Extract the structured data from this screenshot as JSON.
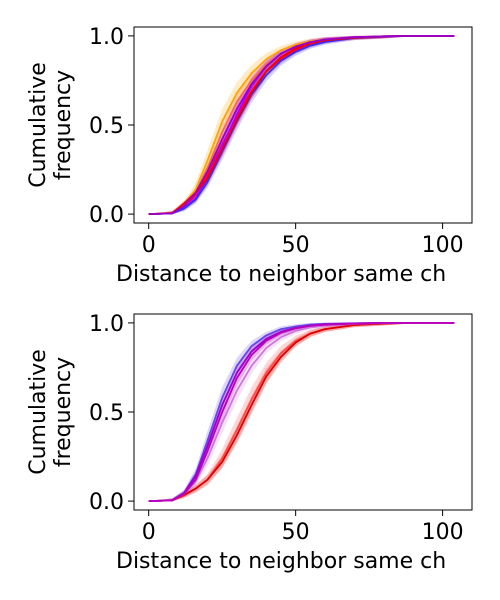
{
  "chart_data": [
    {
      "type": "line",
      "xlabel": "Distance to neighbor same ch",
      "ylabel": [
        "Cumulative",
        "frequency"
      ],
      "xlim": [
        -5,
        110
      ],
      "ylim": [
        -0.05,
        1.05
      ],
      "xticks": [
        0,
        50,
        100
      ],
      "xtick_labels": [
        "0",
        "50",
        "100"
      ],
      "yticks": [
        0,
        0.5,
        1
      ],
      "ytick_labels": [
        "0.0",
        "0.5",
        "1.0"
      ],
      "grid": false,
      "series": [
        {
          "color": "#ffa500",
          "band": 0.06,
          "x": [
            0,
            8,
            12,
            16,
            20,
            25,
            30,
            35,
            40,
            45,
            50,
            55,
            60,
            70,
            80,
            90,
            104
          ],
          "y": [
            0,
            0.005,
            0.05,
            0.14,
            0.3,
            0.52,
            0.68,
            0.79,
            0.87,
            0.92,
            0.95,
            0.97,
            0.98,
            0.993,
            0.998,
            1,
            1
          ]
        },
        {
          "color": "#ff6a3a",
          "band": 0.05,
          "x": [
            0,
            8,
            12,
            16,
            20,
            25,
            30,
            35,
            40,
            45,
            50,
            55,
            60,
            70,
            80,
            90,
            104
          ],
          "y": [
            0,
            0.005,
            0.045,
            0.12,
            0.26,
            0.46,
            0.63,
            0.75,
            0.84,
            0.9,
            0.94,
            0.965,
            0.978,
            0.992,
            0.998,
            1,
            1
          ]
        },
        {
          "color": "#ff0033",
          "band": 0.04,
          "x": [
            0,
            8,
            12,
            16,
            20,
            25,
            30,
            35,
            40,
            45,
            50,
            55,
            60,
            70,
            80,
            90,
            104
          ],
          "y": [
            0,
            0.005,
            0.04,
            0.11,
            0.22,
            0.39,
            0.55,
            0.69,
            0.8,
            0.87,
            0.92,
            0.95,
            0.97,
            0.988,
            0.996,
            1,
            1
          ]
        },
        {
          "color": "#b000ff",
          "band": 0.05,
          "x": [
            0,
            8,
            12,
            16,
            20,
            25,
            30,
            35,
            40,
            45,
            50,
            55,
            60,
            70,
            80,
            90,
            104
          ],
          "y": [
            0,
            0.004,
            0.035,
            0.09,
            0.2,
            0.38,
            0.56,
            0.72,
            0.83,
            0.9,
            0.94,
            0.965,
            0.98,
            0.993,
            0.998,
            1,
            1
          ]
        },
        {
          "color": "#3030ff",
          "band": 0.04,
          "x": [
            0,
            8,
            12,
            16,
            20,
            25,
            30,
            35,
            40,
            45,
            50,
            55,
            60,
            70,
            80,
            90,
            104
          ],
          "y": [
            0,
            0.004,
            0.03,
            0.08,
            0.18,
            0.35,
            0.52,
            0.67,
            0.78,
            0.86,
            0.91,
            0.945,
            0.965,
            0.988,
            0.996,
            1,
            1
          ]
        },
        {
          "color": "#ee0000",
          "band": 0.03,
          "x": [
            0,
            8,
            12,
            16,
            20,
            25,
            30,
            35,
            40,
            45,
            50,
            55,
            60,
            70,
            80,
            90,
            104
          ],
          "y": [
            0,
            0.005,
            0.06,
            0.12,
            0.2,
            0.36,
            0.53,
            0.68,
            0.8,
            0.88,
            0.93,
            0.96,
            0.975,
            0.99,
            0.997,
            1,
            1
          ]
        },
        {
          "color": "#9900cc",
          "band": 0.03,
          "x": [
            0,
            8,
            12,
            16,
            20,
            25,
            30,
            35,
            40,
            45,
            50,
            55,
            60,
            70,
            80,
            90,
            104
          ],
          "y": [
            0,
            0.004,
            0.045,
            0.12,
            0.24,
            0.42,
            0.59,
            0.73,
            0.83,
            0.9,
            0.94,
            0.965,
            0.98,
            0.993,
            0.998,
            1,
            1
          ]
        }
      ]
    },
    {
      "type": "line",
      "xlabel": "Distance to neighbor same ch",
      "ylabel": [
        "Cumulative",
        "frequency"
      ],
      "xlim": [
        -5,
        110
      ],
      "ylim": [
        -0.05,
        1.05
      ],
      "xticks": [
        0,
        50,
        100
      ],
      "xtick_labels": [
        "0",
        "50",
        "100"
      ],
      "yticks": [
        0,
        0.5,
        1
      ],
      "ytick_labels": [
        "0.0",
        "0.5",
        "1.0"
      ],
      "grid": false,
      "series": [
        {
          "color": "#ff4a4a",
          "band": 0.06,
          "x": [
            0,
            8,
            12,
            16,
            20,
            25,
            30,
            35,
            40,
            45,
            50,
            55,
            60,
            70,
            80,
            90,
            104
          ],
          "y": [
            0,
            0.004,
            0.03,
            0.07,
            0.12,
            0.24,
            0.4,
            0.57,
            0.72,
            0.83,
            0.9,
            0.94,
            0.965,
            0.988,
            0.996,
            1,
            1
          ]
        },
        {
          "color": "#dd0000",
          "band": 0.04,
          "x": [
            0,
            8,
            12,
            16,
            20,
            25,
            30,
            35,
            40,
            45,
            50,
            55,
            60,
            70,
            80,
            90,
            104
          ],
          "y": [
            0,
            0.004,
            0.035,
            0.07,
            0.12,
            0.22,
            0.37,
            0.54,
            0.7,
            0.81,
            0.89,
            0.94,
            0.965,
            0.988,
            0.996,
            1,
            1
          ]
        },
        {
          "color": "#cc77dd",
          "band": 0.05,
          "x": [
            0,
            8,
            12,
            16,
            20,
            25,
            30,
            35,
            40,
            45,
            50,
            55,
            60,
            70,
            80,
            90,
            104
          ],
          "y": [
            0,
            0.004,
            0.04,
            0.11,
            0.24,
            0.44,
            0.62,
            0.76,
            0.86,
            0.92,
            0.955,
            0.975,
            0.985,
            0.995,
            0.999,
            1,
            1
          ]
        },
        {
          "color": "#6644ee",
          "band": 0.05,
          "x": [
            0,
            8,
            12,
            16,
            20,
            25,
            30,
            35,
            40,
            45,
            50,
            55,
            60,
            70,
            80,
            90,
            104
          ],
          "y": [
            0,
            0.004,
            0.045,
            0.15,
            0.34,
            0.58,
            0.76,
            0.87,
            0.93,
            0.965,
            0.98,
            0.99,
            0.995,
            0.998,
            1,
            1,
            1
          ]
        },
        {
          "color": "#9900cc",
          "band": 0.04,
          "x": [
            0,
            8,
            12,
            16,
            20,
            25,
            30,
            35,
            40,
            45,
            50,
            55,
            60,
            70,
            80,
            90,
            104
          ],
          "y": [
            0,
            0.004,
            0.045,
            0.14,
            0.31,
            0.54,
            0.72,
            0.84,
            0.91,
            0.95,
            0.972,
            0.985,
            0.992,
            0.997,
            1,
            1,
            1
          ]
        },
        {
          "color": "#bb00bb",
          "band": 0.04,
          "x": [
            0,
            8,
            12,
            16,
            20,
            25,
            30,
            35,
            40,
            45,
            50,
            55,
            60,
            70,
            80,
            90,
            104
          ],
          "y": [
            0,
            0.004,
            0.04,
            0.12,
            0.28,
            0.5,
            0.69,
            0.82,
            0.9,
            0.945,
            0.97,
            0.983,
            0.99,
            0.996,
            1,
            1,
            1
          ]
        }
      ]
    }
  ]
}
